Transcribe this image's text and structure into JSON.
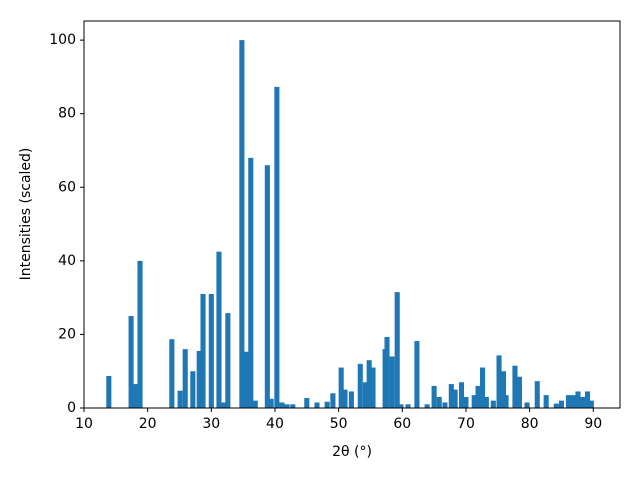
{
  "chart_data": {
    "type": "bar",
    "x_label": "2θ (°)",
    "y_label": "Intensities (scaled)",
    "color": "#1f77b4",
    "x": [
      13.9,
      17.4,
      18.0,
      18.8,
      23.8,
      25.1,
      25.9,
      27.1,
      28.1,
      28.7,
      30.0,
      31.2,
      32.0,
      32.6,
      34.8,
      35.5,
      36.2,
      36.9,
      38.8,
      39.4,
      40.3,
      41.1,
      41.9,
      42.8,
      45.0,
      46.6,
      48.2,
      49.1,
      50.4,
      51.0,
      52.0,
      53.4,
      54.2,
      54.8,
      55.4,
      57.3,
      57.6,
      58.4,
      59.2,
      59.8,
      60.9,
      62.3,
      63.9,
      65.0,
      65.8,
      66.7,
      67.7,
      68.3,
      69.3,
      70.0,
      71.3,
      71.9,
      72.6,
      73.2,
      74.3,
      75.2,
      75.9,
      76.3,
      77.7,
      78.4,
      79.6,
      81.2,
      82.6,
      84.2,
      85.0,
      86.1,
      86.9,
      87.6,
      88.3,
      89.1,
      89.7
    ],
    "values": [
      8.7,
      25,
      6.5,
      40,
      18.7,
      4.7,
      16,
      10,
      15.5,
      31,
      31,
      42.5,
      1.5,
      25.8,
      100,
      15.3,
      68,
      2,
      66,
      2.5,
      87.3,
      1.5,
      1,
      1,
      2.7,
      1.5,
      1.7,
      4,
      11,
      5,
      4.5,
      12,
      7,
      13,
      11,
      16,
      19.3,
      14,
      31.5,
      1,
      1,
      18.2,
      1,
      6,
      3,
      1.5,
      6.5,
      5,
      7,
      3,
      3.5,
      6,
      11,
      3,
      2,
      14.3,
      10,
      3.5,
      11.5,
      8.5,
      1.5,
      7.3,
      3.5,
      1.2,
      2,
      3.5,
      3.5,
      4.5,
      3,
      4.5,
      2
    ],
    "xlim": [
      10,
      94.2
    ],
    "ylim": [
      0,
      105.2
    ],
    "xticks": [
      10,
      20,
      30,
      40,
      50,
      60,
      70,
      80,
      90
    ],
    "yticks": [
      0,
      20,
      40,
      60,
      80,
      100
    ]
  }
}
